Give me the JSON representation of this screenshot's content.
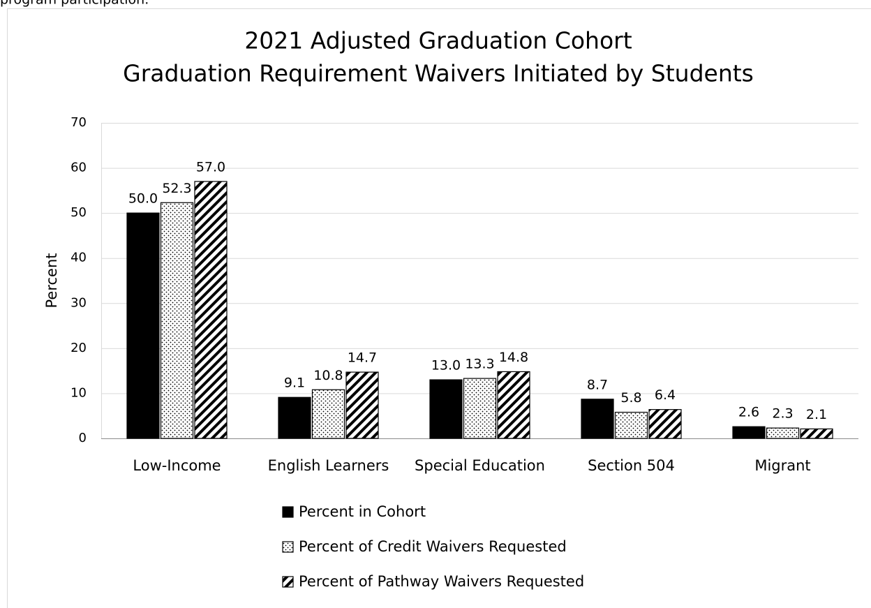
{
  "note": "program participation.",
  "chart_data": {
    "type": "bar",
    "title": "2021 Adjusted Graduation Cohort",
    "subtitle": "Graduation Requirement Waivers Initiated by Students",
    "y_label": "Percent",
    "categories": [
      "Low-Income",
      "English Learners",
      "Special Education",
      "Section 504",
      "Migrant"
    ],
    "series": [
      {
        "name": "Percent in Cohort",
        "color": "#000000",
        "pattern": "solid",
        "values": [
          50,
          9.1,
          13,
          8.7,
          2.6
        ],
        "value_labels": [
          "50.0",
          "9.1",
          "13.0",
          "8.7",
          "2.6"
        ]
      },
      {
        "name": "Percent of Credit Waivers Requested",
        "color": "#000000",
        "pattern": "dots",
        "values": [
          52.3,
          10.8,
          13.3,
          5.8,
          2.3
        ],
        "value_labels": [
          "52.3",
          "10.8",
          "13.3",
          "5.8",
          "2.3"
        ]
      },
      {
        "name": "Percent of Pathway Waivers Requested",
        "color": "#000000",
        "pattern": "stripes",
        "values": [
          57,
          14.7,
          14.8,
          6.4,
          2.1
        ],
        "value_labels": [
          "57.0",
          "14.7",
          "14.8",
          "6.4",
          "2.1"
        ]
      }
    ],
    "ylim": [
      0,
      70
    ],
    "yticks": [
      0,
      10,
      20,
      30,
      40,
      50,
      60,
      70
    ],
    "grid": true,
    "legend": "bottom"
  }
}
